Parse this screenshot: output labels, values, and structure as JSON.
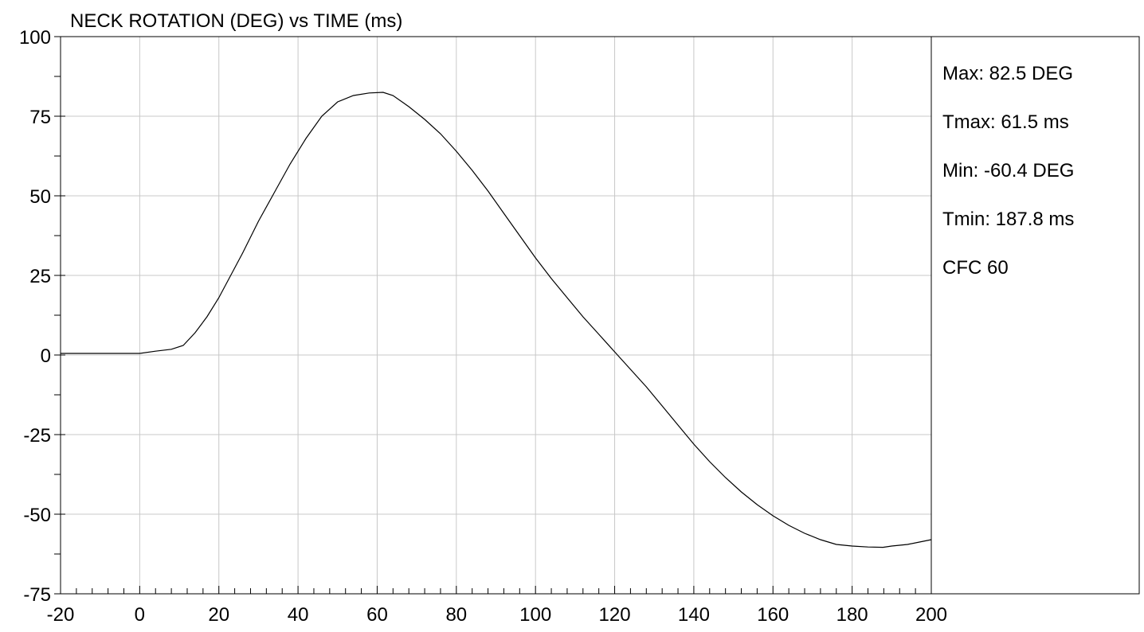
{
  "chart_data": {
    "type": "line",
    "title": "NECK ROTATION (DEG) vs TIME (ms)",
    "xlabel": "",
    "ylabel": "",
    "xlim": [
      -20,
      200
    ],
    "ylim": [
      -75,
      100
    ],
    "x_ticks": [
      -20,
      0,
      20,
      40,
      60,
      80,
      100,
      120,
      140,
      160,
      180,
      200
    ],
    "y_ticks": [
      100,
      75,
      50,
      25,
      0,
      -25,
      -50,
      -75
    ],
    "x_minor_step": 4,
    "y_minor_step": 12.5,
    "grid": true,
    "series": [
      {
        "x": [
          -20,
          -10,
          0,
          4,
          8,
          11,
          14,
          17,
          20,
          23,
          26,
          30,
          34,
          38,
          42,
          46,
          50,
          54,
          58,
          61.5,
          64,
          68,
          72,
          76,
          80,
          84,
          88,
          92,
          96,
          100,
          104,
          108,
          112,
          116,
          120,
          124,
          128,
          132,
          136,
          140,
          144,
          148,
          152,
          156,
          160,
          164,
          168,
          172,
          176,
          180,
          184,
          187.8,
          190,
          194,
          198,
          200
        ],
        "y": [
          0.5,
          0.5,
          0.5,
          1.2,
          1.8,
          3.0,
          7.0,
          12.0,
          18.0,
          25.0,
          32.0,
          42.0,
          51.0,
          60.0,
          68.0,
          75.0,
          79.5,
          81.5,
          82.3,
          82.5,
          81.5,
          78.0,
          74.0,
          69.5,
          64.0,
          58.0,
          51.5,
          44.5,
          37.5,
          30.5,
          24.0,
          18.0,
          12.0,
          6.5,
          1.0,
          -4.5,
          -10.0,
          -16.0,
          -22.0,
          -28.0,
          -33.5,
          -38.5,
          -43.0,
          -47.0,
          -50.5,
          -53.5,
          -56.0,
          -58.0,
          -59.5,
          -60.0,
          -60.3,
          -60.4,
          -60.0,
          -59.5,
          -58.5,
          -58.0
        ]
      }
    ],
    "stats": [
      "Max: 82.5 DEG",
      "Tmax: 61.5 ms",
      "Min: -60.4 DEG",
      "Tmin: 187.8 ms",
      "CFC 60"
    ],
    "colors": {
      "line": "#000000",
      "grid": "#c8c8c8",
      "frame": "#000000"
    }
  }
}
